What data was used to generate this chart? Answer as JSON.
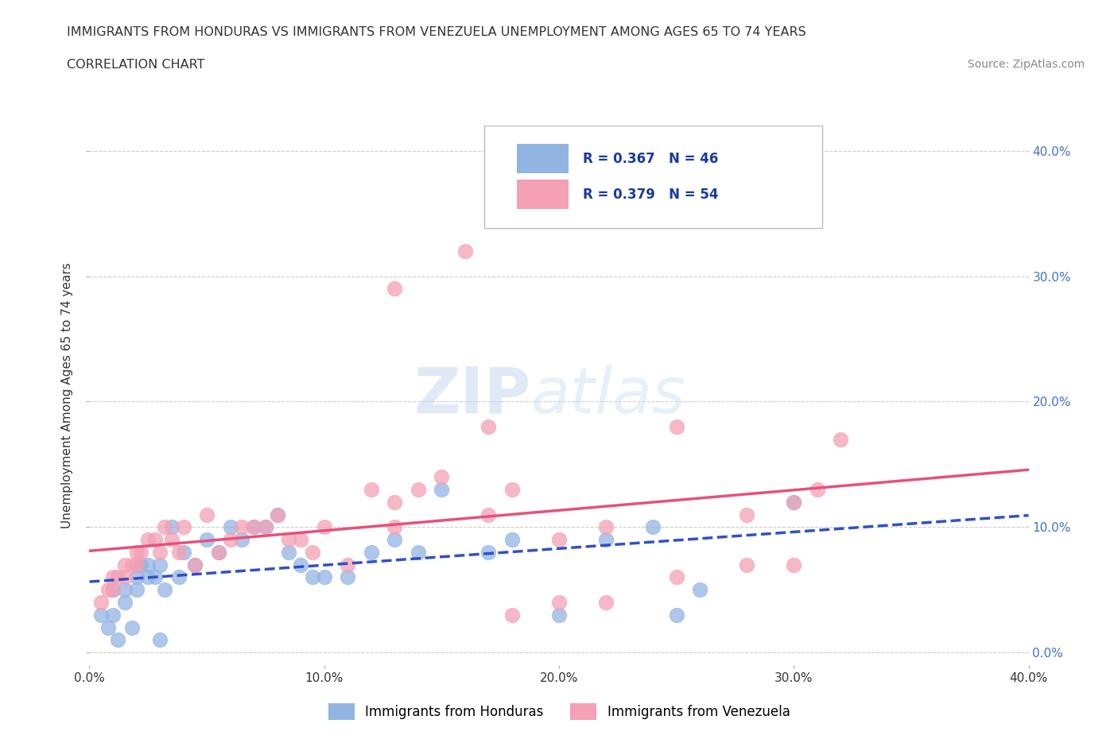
{
  "title_line1": "IMMIGRANTS FROM HONDURAS VS IMMIGRANTS FROM VENEZUELA UNEMPLOYMENT AMONG AGES 65 TO 74 YEARS",
  "title_line2": "CORRELATION CHART",
  "source": "Source: ZipAtlas.com",
  "ylabel": "Unemployment Among Ages 65 to 74 years",
  "xlim": [
    0.0,
    0.4
  ],
  "ylim": [
    -0.01,
    0.42
  ],
  "xticks": [
    0.0,
    0.1,
    0.2,
    0.3,
    0.4
  ],
  "yticks": [
    0.0,
    0.1,
    0.2,
    0.3,
    0.4
  ],
  "xticklabels": [
    "0.0%",
    "10.0%",
    "20.0%",
    "30.0%",
    "40.0%"
  ],
  "right_yticklabels": [
    "0.0%",
    "10.0%",
    "20.0%",
    "30.0%",
    "40.0%"
  ],
  "honduras_color": "#92b4e3",
  "venezuela_color": "#f4a0b5",
  "honduras_line_color": "#3050c8",
  "venezuela_line_color": "#e8507a",
  "R_honduras": 0.367,
  "N_honduras": 46,
  "R_venezuela": 0.379,
  "N_venezuela": 54,
  "legend_label_honduras": "Immigrants from Honduras",
  "legend_label_venezuela": "Immigrants from Venezuela",
  "honduras_x": [
    0.005,
    0.008,
    0.01,
    0.01,
    0.012,
    0.015,
    0.015,
    0.018,
    0.02,
    0.02,
    0.02,
    0.022,
    0.025,
    0.025,
    0.028,
    0.03,
    0.03,
    0.032,
    0.035,
    0.038,
    0.04,
    0.045,
    0.05,
    0.055,
    0.06,
    0.065,
    0.07,
    0.075,
    0.08,
    0.085,
    0.09,
    0.095,
    0.1,
    0.11,
    0.12,
    0.13,
    0.14,
    0.15,
    0.17,
    0.18,
    0.2,
    0.22,
    0.24,
    0.25,
    0.26,
    0.3
  ],
  "honduras_y": [
    0.03,
    0.02,
    0.03,
    0.05,
    0.01,
    0.04,
    0.05,
    0.02,
    0.05,
    0.06,
    0.07,
    0.07,
    0.06,
    0.07,
    0.06,
    0.01,
    0.07,
    0.05,
    0.1,
    0.06,
    0.08,
    0.07,
    0.09,
    0.08,
    0.1,
    0.09,
    0.1,
    0.1,
    0.11,
    0.08,
    0.07,
    0.06,
    0.06,
    0.06,
    0.08,
    0.09,
    0.08,
    0.13,
    0.08,
    0.09,
    0.03,
    0.09,
    0.1,
    0.03,
    0.05,
    0.12
  ],
  "venezuela_x": [
    0.005,
    0.008,
    0.01,
    0.01,
    0.012,
    0.015,
    0.015,
    0.018,
    0.02,
    0.02,
    0.022,
    0.025,
    0.028,
    0.03,
    0.032,
    0.035,
    0.038,
    0.04,
    0.045,
    0.05,
    0.055,
    0.06,
    0.065,
    0.07,
    0.075,
    0.08,
    0.085,
    0.09,
    0.095,
    0.1,
    0.11,
    0.12,
    0.13,
    0.13,
    0.14,
    0.15,
    0.16,
    0.17,
    0.18,
    0.18,
    0.2,
    0.2,
    0.22,
    0.22,
    0.25,
    0.25,
    0.28,
    0.28,
    0.3,
    0.3,
    0.31,
    0.32,
    0.13,
    0.17
  ],
  "venezuela_y": [
    0.04,
    0.05,
    0.05,
    0.06,
    0.06,
    0.06,
    0.07,
    0.07,
    0.07,
    0.08,
    0.08,
    0.09,
    0.09,
    0.08,
    0.1,
    0.09,
    0.08,
    0.1,
    0.07,
    0.11,
    0.08,
    0.09,
    0.1,
    0.1,
    0.1,
    0.11,
    0.09,
    0.09,
    0.08,
    0.1,
    0.07,
    0.13,
    0.1,
    0.12,
    0.13,
    0.14,
    0.32,
    0.11,
    0.03,
    0.13,
    0.09,
    0.04,
    0.04,
    0.1,
    0.06,
    0.18,
    0.07,
    0.11,
    0.07,
    0.12,
    0.13,
    0.17,
    0.29,
    0.18
  ],
  "watermark_zip": "ZIP",
  "watermark_atlas": "atlas",
  "background_color": "#ffffff",
  "grid_color": "#cccccc",
  "right_ytick_color": "#4472c4",
  "title_color": "#333333",
  "source_color": "#888888"
}
